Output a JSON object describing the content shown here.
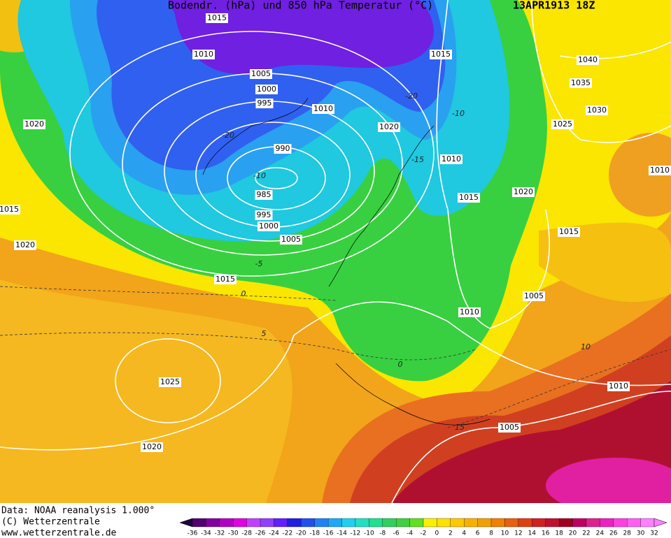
{
  "header": {
    "title": "Bodendr. (hPa) und 850 hPa Temperatur (°C)",
    "date": "13APR1913 18Z"
  },
  "isobar_labels": [
    "1015",
    "1010",
    "1005",
    "1000",
    "995",
    "1010",
    "1020",
    "1020",
    "990",
    "985",
    "995",
    "1000",
    "1005",
    "1015",
    "1020",
    "1015",
    "1015",
    "1010",
    "1015",
    "1020",
    "1040",
    "1035",
    "1030",
    "1025",
    "1010",
    "1015",
    "1005",
    "1010",
    "1025",
    "1010",
    "1005",
    "1020"
  ],
  "temperature_labels": [
    "-20",
    "-10",
    "-15",
    "-20",
    "-10",
    "-5",
    "0",
    "5",
    "10",
    "15",
    "0"
  ],
  "footer": {
    "source": "Data: NOAA reanalysis 1.000°",
    "copyright": "(C) Wetterzentrale",
    "url": "www.wetterzentrale.de"
  },
  "colorbar": {
    "ticks": [
      -36,
      -34,
      -32,
      -30,
      -28,
      -26,
      -24,
      -22,
      -20,
      -18,
      -16,
      -14,
      -12,
      -10,
      -8,
      -6,
      -4,
      -2,
      0,
      2,
      4,
      6,
      8,
      10,
      12,
      14,
      16,
      18,
      20,
      22,
      24,
      26,
      28,
      30,
      32
    ]
  }
}
